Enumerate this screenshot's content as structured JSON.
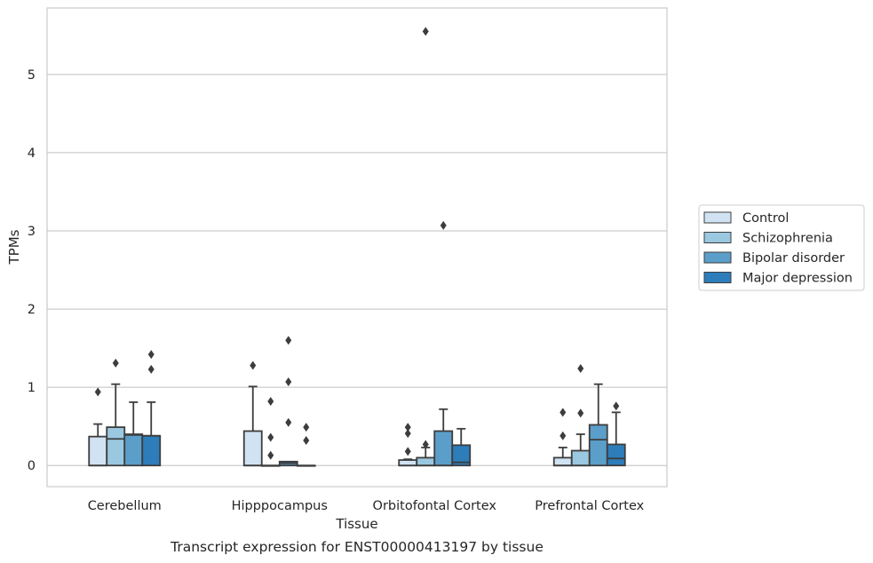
{
  "chart_data": {
    "type": "box",
    "caption": "Transcript expression for ENST00000413197 by tissue",
    "xlabel": "Tissue",
    "ylabel": "TPMs",
    "ylim": [
      -0.27,
      5.85
    ],
    "yticks": [
      0,
      1,
      2,
      3,
      4,
      5
    ],
    "grid": "horizontal",
    "legend_position": "right",
    "categories": [
      "Cerebellum",
      "Hipppocampus",
      "Orbitofontal Cortex",
      "Prefrontal Cortex"
    ],
    "series": [
      {
        "name": "Control",
        "color": "#d1e3f2",
        "boxes": [
          {
            "whisker_low": 0,
            "q1": 0,
            "median": 0,
            "q3": 0.37,
            "whisker_high": 0.53,
            "outliers": [
              0.94
            ]
          },
          {
            "whisker_low": 0,
            "q1": 0,
            "median": 0,
            "q3": 0.44,
            "whisker_high": 1.01,
            "outliers": [
              1.28
            ]
          },
          {
            "whisker_low": 0,
            "q1": 0,
            "median": 0,
            "q3": 0.07,
            "whisker_high": 0.08,
            "outliers": [
              0.18,
              0.41,
              0.49
            ]
          },
          {
            "whisker_low": 0,
            "q1": 0,
            "median": 0,
            "q3": 0.1,
            "whisker_high": 0.23,
            "outliers": [
              0.38,
              0.68
            ]
          }
        ]
      },
      {
        "name": "Schizophrenia",
        "color": "#9ac8e0",
        "boxes": [
          {
            "whisker_low": 0,
            "q1": 0,
            "median": 0.34,
            "q3": 0.49,
            "whisker_high": 1.04,
            "outliers": [
              1.31
            ]
          },
          {
            "whisker_low": 0,
            "q1": 0,
            "median": 0,
            "q3": 0,
            "whisker_high": 0,
            "outliers": [
              0.13,
              0.36,
              0.82
            ]
          },
          {
            "whisker_low": 0,
            "q1": 0,
            "median": 0,
            "q3": 0.1,
            "whisker_high": 0.23,
            "outliers": [
              0.27,
              5.55
            ]
          },
          {
            "whisker_low": 0,
            "q1": 0,
            "median": 0,
            "q3": 0.19,
            "whisker_high": 0.4,
            "outliers": [
              0.67,
              1.24
            ]
          }
        ]
      },
      {
        "name": "Bipolar disorder",
        "color": "#5b9ec9",
        "boxes": [
          {
            "whisker_low": 0,
            "q1": 0,
            "median": 0.39,
            "q3": 0.4,
            "whisker_high": 0.81,
            "outliers": []
          },
          {
            "whisker_low": 0,
            "q1": 0,
            "median": 0.03,
            "q3": 0.05,
            "whisker_high": 0.05,
            "outliers": [
              0.55,
              1.07,
              1.6
            ]
          },
          {
            "whisker_low": 0,
            "q1": 0,
            "median": 0,
            "q3": 0.44,
            "whisker_high": 0.72,
            "outliers": [
              3.07
            ]
          },
          {
            "whisker_low": 0,
            "q1": 0,
            "median": 0.33,
            "q3": 0.52,
            "whisker_high": 1.04,
            "outliers": []
          }
        ]
      },
      {
        "name": "Major depression",
        "color": "#2d7dbb",
        "boxes": [
          {
            "whisker_low": 0,
            "q1": 0,
            "median": 0.38,
            "q3": 0.38,
            "whisker_high": 0.81,
            "outliers": [
              1.23,
              1.42
            ]
          },
          {
            "whisker_low": 0,
            "q1": 0,
            "median": 0,
            "q3": 0,
            "whisker_high": 0,
            "outliers": [
              0.32,
              0.49
            ]
          },
          {
            "whisker_low": 0,
            "q1": 0,
            "median": 0.04,
            "q3": 0.26,
            "whisker_high": 0.47,
            "outliers": []
          },
          {
            "whisker_low": 0,
            "q1": 0,
            "median": 0.09,
            "q3": 0.27,
            "whisker_high": 0.68,
            "outliers": [
              0.76
            ]
          }
        ]
      }
    ]
  }
}
